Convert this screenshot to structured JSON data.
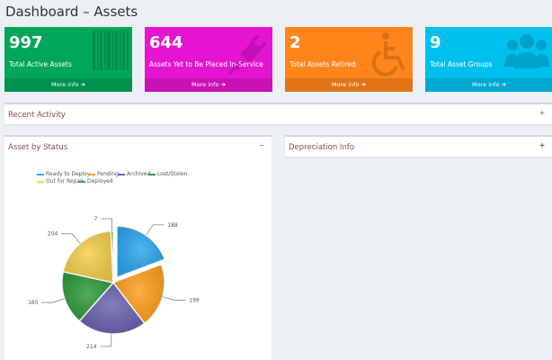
{
  "header": {
    "title": "Dashboard – Assets"
  },
  "stats": [
    {
      "value": "997",
      "label": "Total Active Assets",
      "link": "More info",
      "color": "#00a65a",
      "icon": "barcode-icon"
    },
    {
      "value": "644",
      "label": "Assets Yet to Be Placed In-Service",
      "link": "More info",
      "color": "#e514d0",
      "icon": "plug-icon"
    },
    {
      "value": "2",
      "label": "Total Assets Retired",
      "link": "More info",
      "color": "#ff851b",
      "icon": "wheelchair-icon"
    },
    {
      "value": "9",
      "label": "Total Asset Groups",
      "link": "More info",
      "color": "#00c0ef",
      "icon": "users-icon"
    }
  ],
  "panels": {
    "recent_activity": {
      "title": "Recent Activity",
      "tool": "+"
    },
    "asset_by_status": {
      "title": "Asset by Status",
      "tool": "−"
    },
    "depreciation": {
      "title": "Depreciation Info",
      "tool": "+"
    }
  },
  "chart_data": {
    "type": "pie",
    "categories": [
      "Ready to Deploy",
      "Pending",
      "Archived",
      "Lost/Stolen",
      "Out for Repair",
      "Deployed"
    ],
    "values": [
      188,
      199,
      214,
      165,
      204,
      7
    ],
    "colors": [
      "#2aa7f0",
      "#ff9f1c",
      "#6c63b0",
      "#2e9b3c",
      "#f5d04a",
      "#3aa83a"
    ],
    "exploded": "Ready to Deploy",
    "legend": "top"
  }
}
